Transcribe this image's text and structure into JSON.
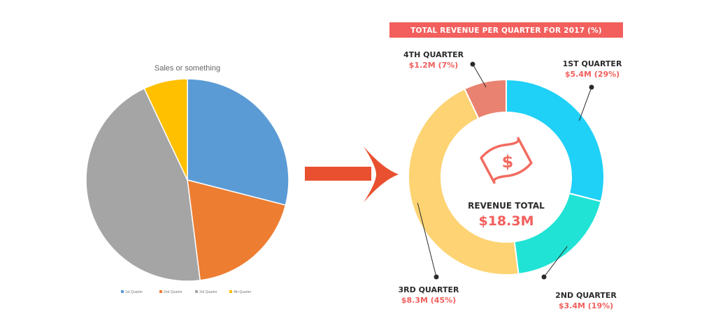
{
  "colors": {
    "background": "#ffffff",
    "accent": "#f25f5c",
    "arrow": "#e8502f",
    "icon": "#f26b60",
    "text_dark": "#2b2b2b"
  },
  "icons": {
    "center": "money-bill-icon",
    "arrow": "right-arrow-icon"
  },
  "chart_data": [
    {
      "type": "pie",
      "title": "Sales or something",
      "categories": [
        "1st Quarter",
        "2nd Quarter",
        "3rd Quarter",
        "4th Quarter"
      ],
      "values": [
        29,
        19,
        45,
        7
      ],
      "colors": [
        "#5b9bd5",
        "#ed7d31",
        "#a5a5a5",
        "#ffc000"
      ],
      "legend": "bottom"
    },
    {
      "type": "pie",
      "style": "donut",
      "title": "TOTAL REVENUE PER QUARTER FOR 2017 (%)",
      "categories": [
        "1ST QUARTER",
        "2ND QUARTER",
        "3RD QUARTER",
        "4TH QUARTER"
      ],
      "values": [
        29,
        19,
        45,
        7
      ],
      "value_labels": [
        "$5.4M (29%)",
        "$3.4M (19%)",
        "$8.3M (45%)",
        "$1.2M (7%)"
      ],
      "colors": [
        "#1fd0f7",
        "#20e3d5",
        "#fdd373",
        "#e98270"
      ],
      "center_label": "REVENUE TOTAL",
      "center_value": "$18.3M"
    }
  ]
}
